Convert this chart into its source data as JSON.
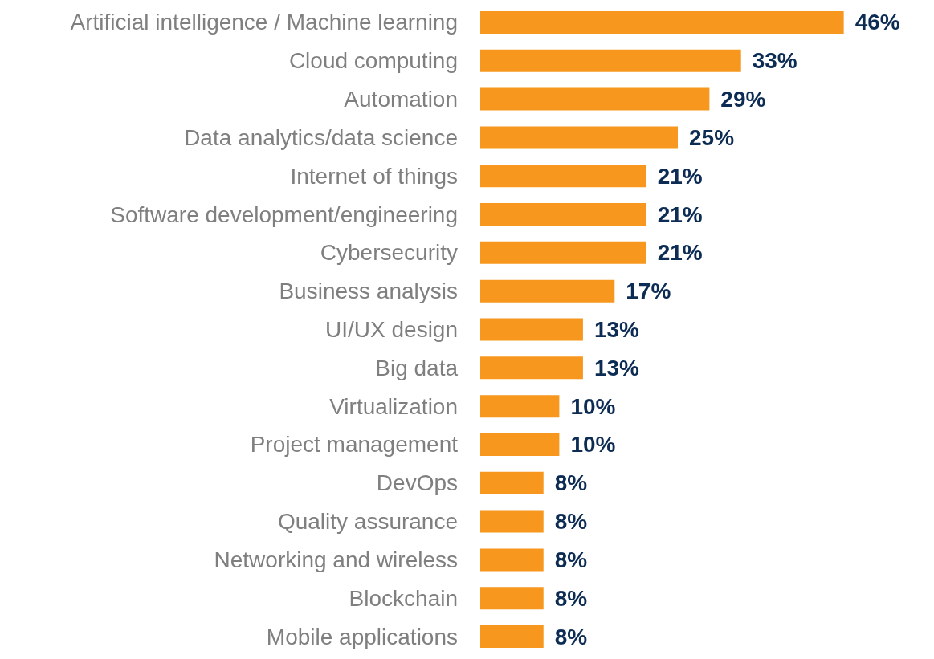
{
  "chart_data": {
    "type": "bar",
    "orientation": "horizontal",
    "categories": [
      "Artificial intelligence / Machine learning",
      "Cloud computing",
      "Automation",
      "Data analytics/data science",
      "Internet of things",
      "Software development/engineering",
      "Cybersecurity",
      "Business analysis",
      "UI/UX design",
      "Big data",
      "Virtualization",
      "Project management",
      "DevOps",
      "Quality assurance",
      "Networking and wireless",
      "Blockchain",
      "Mobile applications"
    ],
    "values": [
      46,
      33,
      29,
      25,
      21,
      21,
      21,
      17,
      13,
      13,
      10,
      10,
      8,
      8,
      8,
      8,
      8
    ],
    "value_labels": [
      "46%",
      "33%",
      "29%",
      "25%",
      "21%",
      "21%",
      "21%",
      "17%",
      "13%",
      "13%",
      "10%",
      "10%",
      "8%",
      "8%",
      "8%",
      "8%",
      "8%"
    ],
    "color": "#f7971e",
    "grid": false
  }
}
